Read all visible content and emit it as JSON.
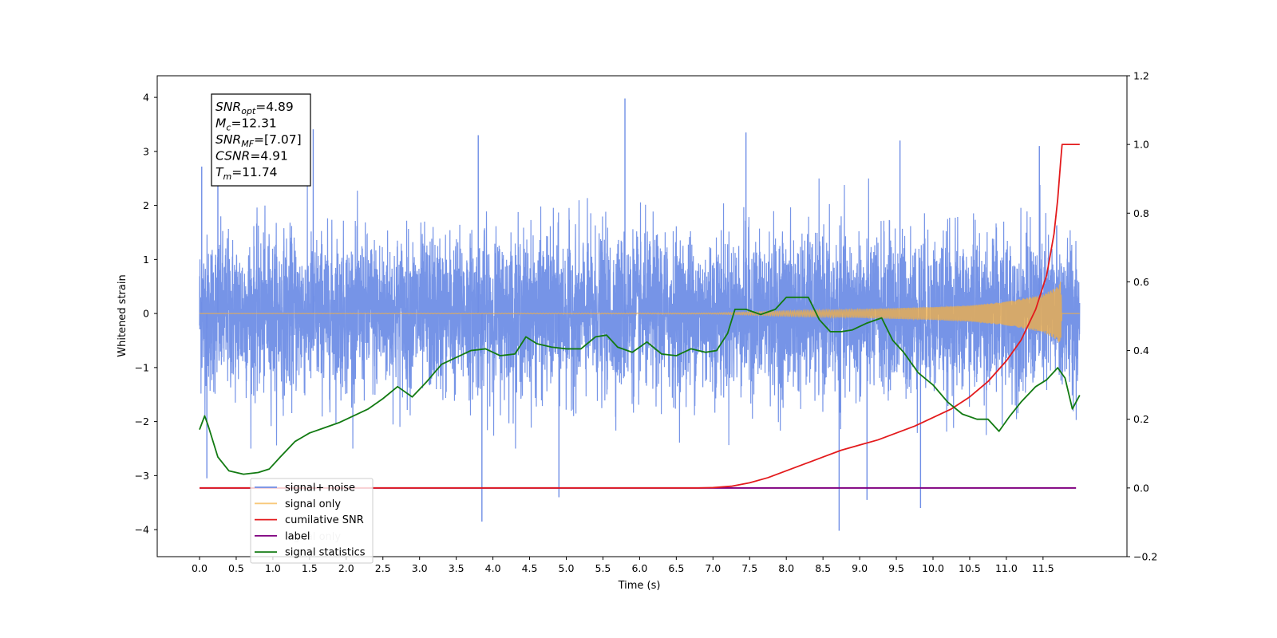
{
  "chart_data": {
    "type": "line",
    "xlabel": "Time (s)",
    "ylabel_left": "Whitened strain",
    "ylabel_right": "",
    "xlim": [
      -0.6,
      12.65
    ],
    "ylim_left": [
      -4.5,
      4.4
    ],
    "ylim_right": [
      -0.2,
      1.2
    ],
    "x_ticks": [
      "0.0",
      "0.5",
      "1.0",
      "1.5",
      "2.0",
      "2.5",
      "3.0",
      "3.5",
      "4.0",
      "4.5",
      "5.0",
      "5.5",
      "6.0",
      "6.5",
      "7.0",
      "7.5",
      "8.0",
      "8.5",
      "9.0",
      "9.5",
      "10.0",
      "10.5",
      "11.0",
      "11.5"
    ],
    "y_ticks_left": [
      "4",
      "3",
      "2",
      "1",
      "0",
      "−1",
      "−2",
      "−3",
      "−4"
    ],
    "y_ticks_right": [
      "1.2",
      "1.0",
      "0.8",
      "0.6",
      "0.4",
      "0.2",
      "0.0",
      "−0.2"
    ],
    "grid": false,
    "legend_position": "lower-left",
    "series": [
      {
        "name": "signal+ noise",
        "axis": "left",
        "color": "#6f8ee6",
        "x_range": [
          0.0,
          12.0
        ],
        "typical_range": [
          -2.0,
          2.0
        ],
        "notable_peaks": [
          {
            "x": 0.03,
            "y": 2.72
          },
          {
            "x": 0.1,
            "y": -3.05
          },
          {
            "x": 0.25,
            "y": 3.38
          },
          {
            "x": 1.55,
            "y": 3.41
          },
          {
            "x": 3.85,
            "y": -3.85
          },
          {
            "x": 3.8,
            "y": 3.3
          },
          {
            "x": 4.9,
            "y": -3.4
          },
          {
            "x": 5.8,
            "y": 3.98
          },
          {
            "x": 7.45,
            "y": 3.35
          },
          {
            "x": 8.72,
            "y": -4.02
          },
          {
            "x": 9.1,
            "y": -3.45
          },
          {
            "x": 9.55,
            "y": 3.2
          },
          {
            "x": 9.83,
            "y": -3.6
          },
          {
            "x": 11.45,
            "y": 3.1
          }
        ]
      },
      {
        "name": "signal only",
        "axis": "left",
        "color": "#f5b041",
        "x_range": [
          0.0,
          12.0
        ],
        "envelope": [
          [
            0.0,
            0.0
          ],
          [
            7.0,
            0.01
          ],
          [
            8.0,
            0.05
          ],
          [
            9.0,
            0.08
          ],
          [
            10.0,
            0.12
          ],
          [
            10.5,
            0.15
          ],
          [
            11.0,
            0.22
          ],
          [
            11.5,
            0.35
          ],
          [
            11.7,
            0.5
          ],
          [
            11.74,
            0.6
          ],
          [
            11.76,
            0.0
          ],
          [
            12.0,
            0.0
          ]
        ]
      },
      {
        "name": "cumilative SNR",
        "axis": "right",
        "color": "#e31a1c",
        "points": [
          [
            0.0,
            0.0
          ],
          [
            6.8,
            0.0
          ],
          [
            7.0,
            0.001
          ],
          [
            7.25,
            0.005
          ],
          [
            7.5,
            0.015
          ],
          [
            7.75,
            0.03
          ],
          [
            8.0,
            0.05
          ],
          [
            8.25,
            0.07
          ],
          [
            8.5,
            0.09
          ],
          [
            8.75,
            0.11
          ],
          [
            9.0,
            0.125
          ],
          [
            9.25,
            0.14
          ],
          [
            9.5,
            0.16
          ],
          [
            9.75,
            0.18
          ],
          [
            10.0,
            0.205
          ],
          [
            10.25,
            0.23
          ],
          [
            10.5,
            0.265
          ],
          [
            10.75,
            0.31
          ],
          [
            11.0,
            0.37
          ],
          [
            11.2,
            0.43
          ],
          [
            11.4,
            0.52
          ],
          [
            11.55,
            0.62
          ],
          [
            11.65,
            0.74
          ],
          [
            11.7,
            0.84
          ],
          [
            11.74,
            0.95
          ],
          [
            11.76,
            1.0
          ],
          [
            12.0,
            1.0
          ]
        ]
      },
      {
        "name": "label",
        "axis": "right",
        "color": "#800080",
        "points": [
          [
            0.0,
            0.0
          ],
          [
            11.95,
            0.0
          ]
        ]
      },
      {
        "name": "signal statistics",
        "axis": "right",
        "color": "#127a12",
        "points": [
          [
            0.0,
            0.17
          ],
          [
            0.07,
            0.21
          ],
          [
            0.12,
            0.18
          ],
          [
            0.25,
            0.09
          ],
          [
            0.4,
            0.05
          ],
          [
            0.6,
            0.04
          ],
          [
            0.8,
            0.045
          ],
          [
            0.95,
            0.055
          ],
          [
            1.1,
            0.09
          ],
          [
            1.3,
            0.135
          ],
          [
            1.5,
            0.16
          ],
          [
            1.7,
            0.175
          ],
          [
            1.9,
            0.19
          ],
          [
            2.1,
            0.21
          ],
          [
            2.3,
            0.23
          ],
          [
            2.5,
            0.26
          ],
          [
            2.7,
            0.295
          ],
          [
            2.9,
            0.265
          ],
          [
            3.1,
            0.31
          ],
          [
            3.3,
            0.36
          ],
          [
            3.5,
            0.38
          ],
          [
            3.7,
            0.4
          ],
          [
            3.9,
            0.405
          ],
          [
            4.1,
            0.385
          ],
          [
            4.3,
            0.39
          ],
          [
            4.45,
            0.44
          ],
          [
            4.6,
            0.42
          ],
          [
            4.8,
            0.41
          ],
          [
            5.0,
            0.405
          ],
          [
            5.2,
            0.405
          ],
          [
            5.4,
            0.44
          ],
          [
            5.55,
            0.445
          ],
          [
            5.7,
            0.41
          ],
          [
            5.9,
            0.395
          ],
          [
            6.1,
            0.425
          ],
          [
            6.3,
            0.39
          ],
          [
            6.5,
            0.385
          ],
          [
            6.7,
            0.405
          ],
          [
            6.9,
            0.395
          ],
          [
            7.05,
            0.4
          ],
          [
            7.2,
            0.45
          ],
          [
            7.3,
            0.52
          ],
          [
            7.45,
            0.52
          ],
          [
            7.65,
            0.505
          ],
          [
            7.85,
            0.52
          ],
          [
            8.0,
            0.555
          ],
          [
            8.15,
            0.555
          ],
          [
            8.3,
            0.555
          ],
          [
            8.45,
            0.49
          ],
          [
            8.6,
            0.455
          ],
          [
            8.75,
            0.455
          ],
          [
            8.9,
            0.46
          ],
          [
            9.1,
            0.48
          ],
          [
            9.3,
            0.495
          ],
          [
            9.45,
            0.43
          ],
          [
            9.6,
            0.395
          ],
          [
            9.8,
            0.335
          ],
          [
            10.0,
            0.3
          ],
          [
            10.2,
            0.25
          ],
          [
            10.4,
            0.215
          ],
          [
            10.6,
            0.2
          ],
          [
            10.75,
            0.2
          ],
          [
            10.9,
            0.165
          ],
          [
            11.05,
            0.21
          ],
          [
            11.2,
            0.25
          ],
          [
            11.4,
            0.295
          ],
          [
            11.55,
            0.315
          ],
          [
            11.7,
            0.35
          ],
          [
            11.8,
            0.32
          ],
          [
            11.9,
            0.23
          ],
          [
            12.0,
            0.27
          ]
        ]
      }
    ],
    "info_box": {
      "lines": [
        {
          "name": "SNR",
          "sub": "opt",
          "value": "=4.89"
        },
        {
          "name": "M",
          "sub": "c",
          "value": "=12.31"
        },
        {
          "name": "SNR",
          "sub": "MF",
          "value": "=[7.07]"
        },
        {
          "name": "CSNR",
          "sub": "",
          "value": "=4.91"
        },
        {
          "name": "T",
          "sub": "m",
          "value": "=11.74"
        }
      ]
    },
    "legend_hidden_text": "signal only"
  }
}
